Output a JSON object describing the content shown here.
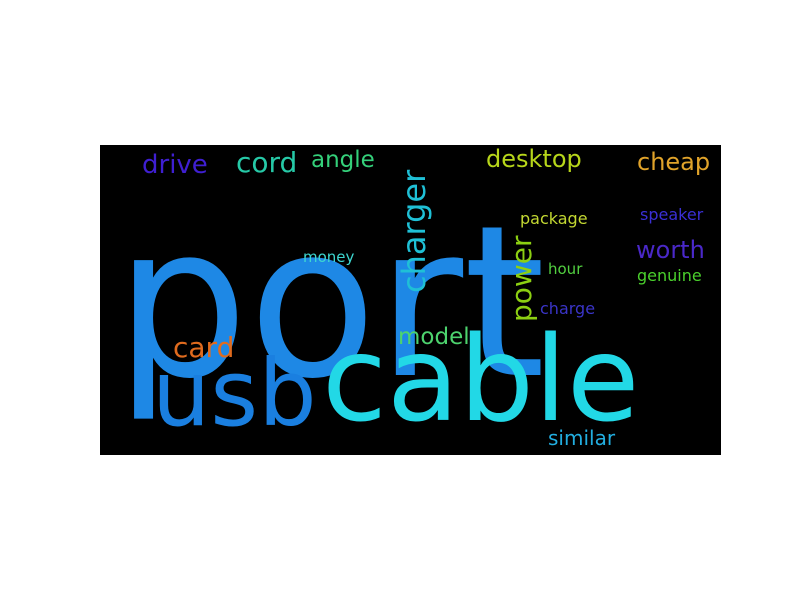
{
  "words": [
    {
      "text": "port",
      "color": "#1e88e5"
    },
    {
      "text": "cable",
      "color": "#22d8e6"
    },
    {
      "text": "usb",
      "color": "#1a7fe0"
    },
    {
      "text": "charger",
      "color": "#1fc0d6"
    },
    {
      "text": "power",
      "color": "#8ccf12"
    },
    {
      "text": "drive",
      "color": "#3f1fd1"
    },
    {
      "text": "cord",
      "color": "#26c9a7"
    },
    {
      "text": "angle",
      "color": "#34d07a"
    },
    {
      "text": "desktop",
      "color": "#b7d61a"
    },
    {
      "text": "cheap",
      "color": "#e0a32a"
    },
    {
      "text": "speaker",
      "color": "#3a2fd5"
    },
    {
      "text": "package",
      "color": "#c3d832"
    },
    {
      "text": "worth",
      "color": "#4a28c9"
    },
    {
      "text": "money",
      "color": "#3dd6d0"
    },
    {
      "text": "hour",
      "color": "#52d040"
    },
    {
      "text": "genuine",
      "color": "#4ad02c"
    },
    {
      "text": "charge",
      "color": "#3a34c8"
    },
    {
      "text": "model",
      "color": "#4dd36e"
    },
    {
      "text": "card",
      "color": "#e06b1e"
    },
    {
      "text": "similar",
      "color": "#22aee0"
    }
  ]
}
